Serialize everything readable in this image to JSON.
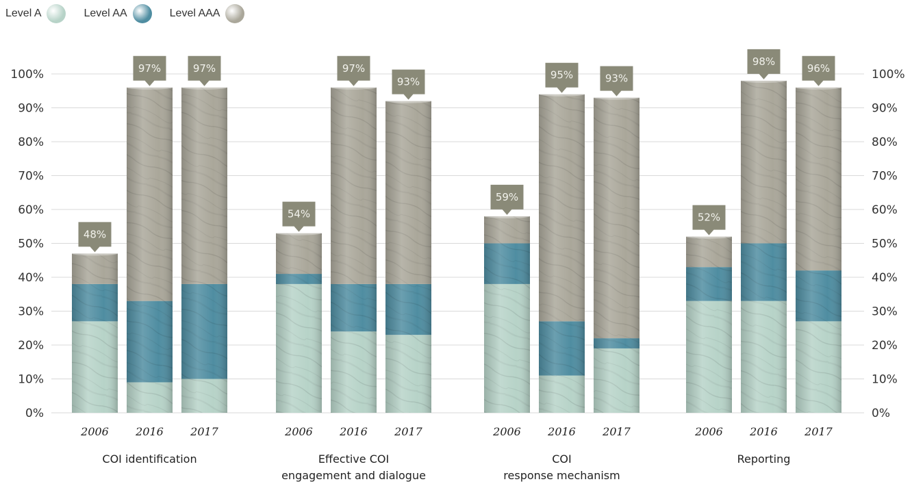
{
  "legend": [
    {
      "label": "Level  A",
      "color": "#b7d3c8"
    },
    {
      "label": "Level  AA",
      "color": "#4f8da1"
    },
    {
      "label": "Level  AAA",
      "color": "#aaa79a"
    }
  ],
  "chart_data": {
    "type": "bar",
    "stacked": true,
    "y_ticks": [
      "0%",
      "10%",
      "20%",
      "30%",
      "40%",
      "50%",
      "60%",
      "70%",
      "80%",
      "90%",
      "100%"
    ],
    "ylim": [
      0,
      100
    ],
    "grid": true,
    "legend_position": "top-left",
    "groups": [
      {
        "label_lines": [
          "COI identification"
        ],
        "bars": [
          {
            "year": "2006",
            "level_a": 27,
            "level_aa": 11,
            "level_aaa": 9,
            "total_label": "48%"
          },
          {
            "year": "2016",
            "level_a": 9,
            "level_aa": 24,
            "level_aaa": 63,
            "total_label": "97%"
          },
          {
            "year": "2017",
            "level_a": 10,
            "level_aa": 28,
            "level_aaa": 58,
            "total_label": "97%"
          }
        ]
      },
      {
        "label_lines": [
          "Effective COI",
          "engagement and dialogue"
        ],
        "bars": [
          {
            "year": "2006",
            "level_a": 38,
            "level_aa": 3,
            "level_aaa": 12,
            "total_label": "54%"
          },
          {
            "year": "2016",
            "level_a": 24,
            "level_aa": 14,
            "level_aaa": 58,
            "total_label": "97%"
          },
          {
            "year": "2017",
            "level_a": 23,
            "level_aa": 15,
            "level_aaa": 54,
            "total_label": "93%"
          }
        ]
      },
      {
        "label_lines": [
          "COI",
          "response mechanism"
        ],
        "bars": [
          {
            "year": "2006",
            "level_a": 38,
            "level_aa": 12,
            "level_aaa": 8,
            "total_label": "59%"
          },
          {
            "year": "2016",
            "level_a": 11,
            "level_aa": 16,
            "level_aaa": 67,
            "total_label": "95%"
          },
          {
            "year": "2017",
            "level_a": 19,
            "level_aa": 3,
            "level_aaa": 71,
            "total_label": "93%"
          }
        ]
      },
      {
        "label_lines": [
          "Reporting"
        ],
        "bars": [
          {
            "year": "2006",
            "level_a": 33,
            "level_aa": 10,
            "level_aaa": 9,
            "total_label": "52%"
          },
          {
            "year": "2016",
            "level_a": 33,
            "level_aa": 17,
            "level_aaa": 48,
            "total_label": "98%"
          },
          {
            "year": "2017",
            "level_a": 27,
            "level_aa": 15,
            "level_aaa": 54,
            "total_label": "96%"
          }
        ]
      }
    ]
  }
}
